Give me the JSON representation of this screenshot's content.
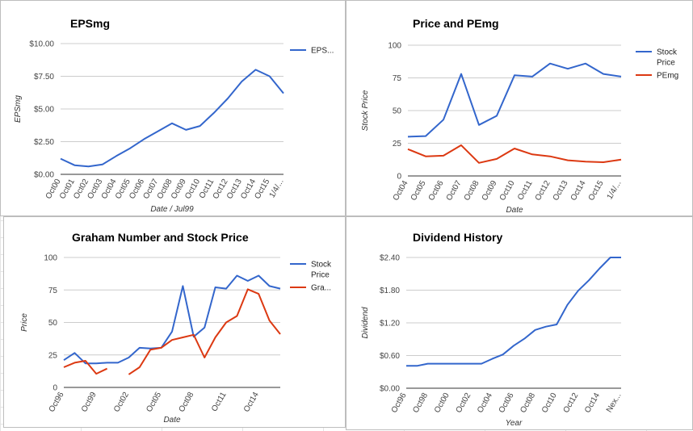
{
  "chart_data": [
    {
      "type": "line",
      "title": "EPSmg",
      "xlabel": "Date / Jul99",
      "ylabel": "EPSmg",
      "categories": [
        "Oct00",
        "Oct01",
        "Oct02",
        "Oct03",
        "Oct04",
        "Oct05",
        "Oct06",
        "Oct07",
        "Oct08",
        "Oct09",
        "Oct10",
        "Oct11",
        "Oct12",
        "Oct13",
        "Oct14",
        "Oct15",
        "1/4/..."
      ],
      "yticks": [
        "$0.00",
        "$2.50",
        "$5.00",
        "$7.50",
        "$10.00"
      ],
      "ylim": [
        0,
        10
      ],
      "series": [
        {
          "name": "EPS...",
          "color": "#3366cc",
          "x": [
            0,
            1,
            2,
            3,
            4,
            5,
            6,
            7,
            8,
            9,
            10,
            11,
            12,
            13,
            14,
            15,
            16
          ],
          "values": [
            1.2,
            0.7,
            0.6,
            0.75,
            1.4,
            2.0,
            2.7,
            3.3,
            3.9,
            3.4,
            3.7,
            4.7,
            5.8,
            7.1,
            8.0,
            7.5,
            6.2
          ]
        }
      ],
      "legend": "right"
    },
    {
      "type": "line",
      "title": "Price and PEmg",
      "xlabel": "Date",
      "ylabel": "Stock Price",
      "categories": [
        "Oct04",
        "Oct05",
        "Oct06",
        "Oct07",
        "Oct08",
        "Oct09",
        "Oct10",
        "Oct11",
        "Oct12",
        "Oct13",
        "Oct14",
        "Oct15",
        "1/4/..."
      ],
      "yticks": [
        "0",
        "25",
        "50",
        "75",
        "100"
      ],
      "ylim": [
        0,
        100
      ],
      "series": [
        {
          "name": "Stock Price",
          "color": "#3366cc",
          "x": [
            0,
            1,
            2,
            3,
            4,
            5,
            6,
            7,
            8,
            9,
            10,
            11,
            12
          ],
          "values": [
            30,
            30.5,
            43,
            78,
            39,
            46,
            77,
            76,
            86,
            82,
            86,
            78,
            76
          ]
        },
        {
          "name": "PEmg",
          "color": "#dc3912",
          "x": [
            0,
            1,
            2,
            3,
            4,
            5,
            6,
            7,
            8,
            9,
            10,
            11,
            12
          ],
          "values": [
            20.5,
            15,
            15.5,
            23.5,
            10,
            13,
            21,
            16.5,
            15,
            12,
            11,
            10.5,
            12.5
          ]
        }
      ],
      "legend": "right"
    },
    {
      "type": "line",
      "title": "Graham Number and Stock Price",
      "xlabel": "Date",
      "ylabel": "Price",
      "categories": [
        "Oct96",
        "Oct99",
        "Oct02",
        "Oct05",
        "Oct08",
        "Oct11",
        "Oct14"
      ],
      "yticks": [
        "0",
        "25",
        "50",
        "75",
        "100"
      ],
      "ylim": [
        0,
        100
      ],
      "series": [
        {
          "name": "Stock Price",
          "color": "#3366cc",
          "x": [
            0,
            1,
            2,
            3,
            4,
            5,
            6,
            7,
            8,
            9,
            10,
            11,
            12,
            13,
            14,
            15,
            16,
            17,
            18,
            19,
            20
          ],
          "values": [
            21,
            26.5,
            18.5,
            18.5,
            19,
            19,
            23,
            30.5,
            30,
            30.5,
            43,
            78,
            39,
            46,
            77,
            76,
            86,
            82,
            86,
            78,
            76
          ]
        },
        {
          "name": "Gra...",
          "color": "#dc3912",
          "x": [
            0,
            1,
            2,
            3,
            4,
            6,
            7,
            8,
            9,
            10,
            11,
            12,
            13,
            14,
            15,
            16,
            17,
            18,
            19,
            20
          ],
          "values": [
            15.5,
            19,
            20.5,
            10.5,
            14.5,
            10,
            15.5,
            29,
            30.5,
            36.5,
            38.5,
            40.5,
            23,
            38.5,
            50,
            55,
            75.5,
            72,
            51.5,
            41
          ]
        }
      ],
      "legend": "right"
    },
    {
      "type": "line",
      "title": "Dividend History",
      "xlabel": "Year",
      "ylabel": "Dividend",
      "categories": [
        "Oct96",
        "Oct98",
        "Oct00",
        "Oct02",
        "Oct04",
        "Oct06",
        "Oct08",
        "Oct10",
        "Oct12",
        "Oct14",
        "Nex..."
      ],
      "yticks": [
        "$0.00",
        "$0.60",
        "$1.20",
        "$1.80",
        "$2.40"
      ],
      "ylim": [
        0,
        2.4
      ],
      "series": [
        {
          "name": "Dividend",
          "color": "#3366cc",
          "x": [
            0,
            1,
            2,
            3,
            4,
            5,
            6,
            7,
            8,
            9,
            10,
            11,
            12,
            13,
            14,
            15,
            16,
            17,
            18,
            19,
            20
          ],
          "values": [
            0.41,
            0.41,
            0.45,
            0.45,
            0.45,
            0.45,
            0.45,
            0.45,
            0.54,
            0.62,
            0.78,
            0.91,
            1.07,
            1.13,
            1.17,
            1.53,
            1.79,
            1.98,
            2.2,
            2.4,
            2.4
          ]
        }
      ],
      "legend": "none"
    }
  ]
}
